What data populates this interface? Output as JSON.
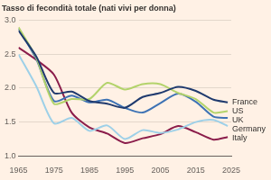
{
  "chart_data": {
    "type": "line",
    "title": "Tasso di fecondità totale (nati vivi per donna)",
    "grid": true,
    "xlim": [
      1965,
      2025
    ],
    "xticks": [
      1965,
      1975,
      1985,
      1995,
      2005,
      2015,
      2025
    ],
    "ylim": [
      1.0,
      3.0
    ],
    "yticks": [
      {
        "value": 1.0,
        "label": "1.0"
      },
      {
        "value": 1.5,
        "label": "1.5"
      },
      {
        "value": 2.0,
        "label": "2.0"
      },
      {
        "value": 2.5,
        "label": "2.5"
      },
      {
        "value": 3.0,
        "label": "3.0"
      }
    ],
    "x": [
      1965,
      1970,
      1975,
      1980,
      1985,
      1990,
      1995,
      2000,
      2005,
      2010,
      2015,
      2020,
      2024
    ],
    "series": [
      {
        "name": "France",
        "color": "#1f3a6e",
        "values": [
          2.85,
          2.47,
          1.93,
          1.95,
          1.81,
          1.77,
          1.71,
          1.87,
          1.93,
          2.02,
          1.96,
          1.83,
          1.79
        ]
      },
      {
        "name": "US",
        "color": "#b3d36b",
        "values": [
          2.9,
          2.45,
          1.77,
          1.84,
          1.84,
          2.08,
          1.98,
          2.06,
          2.06,
          1.93,
          1.84,
          1.64,
          1.66
        ]
      },
      {
        "name": "UK",
        "color": "#3d72b4",
        "values": [
          2.88,
          2.43,
          1.81,
          1.89,
          1.79,
          1.83,
          1.71,
          1.64,
          1.78,
          1.92,
          1.8,
          1.58,
          1.56
        ]
      },
      {
        "name": "Germany",
        "color": "#9dd0e8",
        "values": [
          2.5,
          2.03,
          1.48,
          1.56,
          1.37,
          1.45,
          1.25,
          1.38,
          1.34,
          1.39,
          1.5,
          1.53,
          1.44
        ]
      },
      {
        "name": "Italy",
        "color": "#8b1d4b",
        "values": [
          2.6,
          2.42,
          2.2,
          1.64,
          1.42,
          1.33,
          1.19,
          1.26,
          1.32,
          1.44,
          1.35,
          1.24,
          1.28
        ]
      }
    ]
  }
}
